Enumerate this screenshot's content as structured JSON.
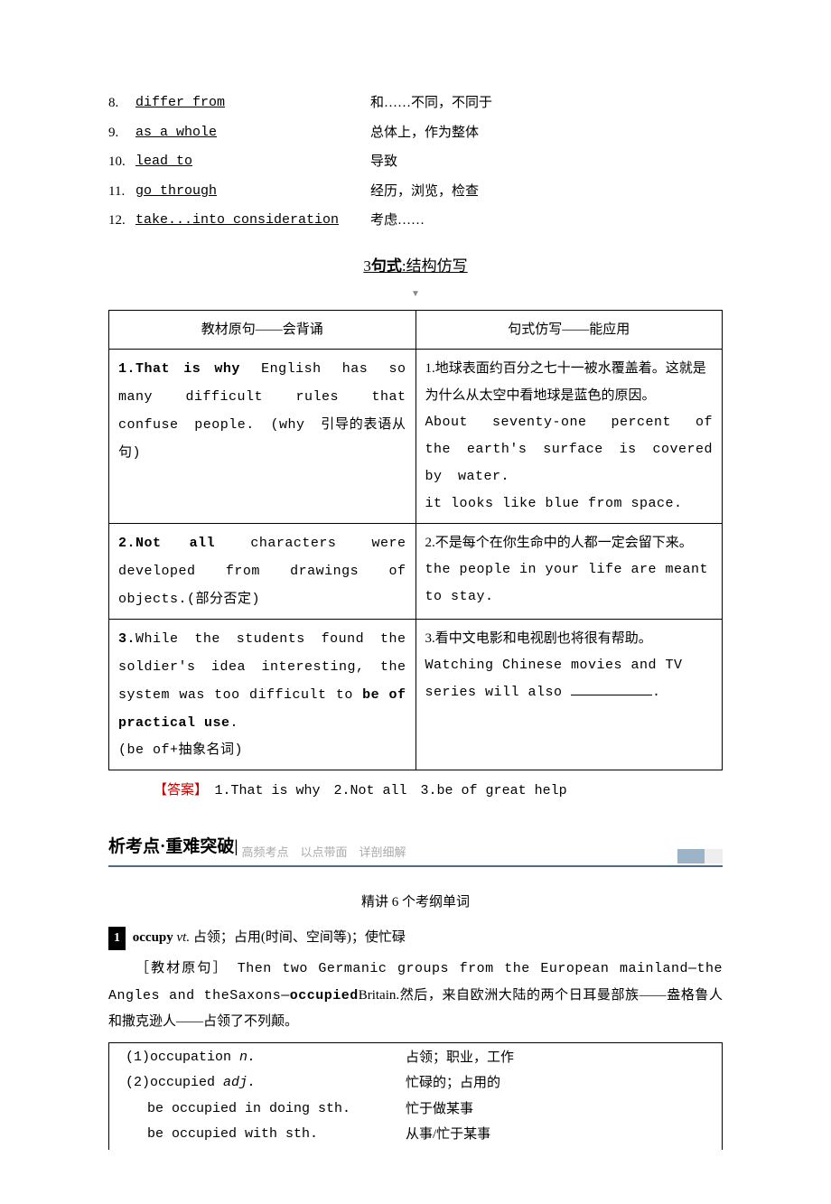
{
  "vocab": [
    {
      "num": "8.",
      "term": "differ from",
      "def": "和……不同，不同于"
    },
    {
      "num": "9.",
      "term": "as a whole",
      "def": "总体上，作为整体"
    },
    {
      "num": "10.",
      "term": "lead to",
      "def": "导致"
    },
    {
      "num": "11.",
      "term": "go through",
      "def": "经历，浏览，检查"
    },
    {
      "num": "12.",
      "term": "take...into consideration",
      "def": "考虑……"
    }
  ],
  "section_title_a": "3",
  "section_title_b": "句式",
  "section_title_c": ":结构仿写",
  "table": {
    "h1": "教材原句——会背诵",
    "h2": "句式仿写——能应用",
    "rows": [
      {
        "left_bold": "1.That is why",
        "left_rest": " English has so many difficult rules that confuse people. (why 引导的表语从句)",
        "right_cn": "1.地球表面约百分之七十一被水覆盖着。这就是为什么从太空中看地球是蓝色的原因。",
        "right_en1": "About seventy-one percent of the earth's surface is covered by water.",
        "right_en2": "it looks like blue from space."
      },
      {
        "left_bold": "2.Not all",
        "left_rest": " characters were developed from drawings of objects.(部分否定)",
        "right_cn": "2.不是每个在你生命中的人都一定会留下来。",
        "right_en1": "the people in your life are meant to stay.",
        "right_en2": ""
      },
      {
        "left_a": "3.",
        "left_b": "While the students found the soldier's idea interesting, the system was too difficult to ",
        "left_bold": "be of practical use",
        "left_c": ".",
        "left_note": "(be of+抽象名词)",
        "right_cn": "3.看中文电影和电视剧也将很有帮助。",
        "right_en1": "Watching Chinese movies and TV series will also ",
        "right_en2": "."
      }
    ]
  },
  "answer_label": "【答案】",
  "answer_text": "　1.That is why　2.Not all　3.be of great help",
  "bar_title": "析考点·重难突破",
  "bar_sep": "|",
  "bar_sub": "高频考点　以点带面　详剖细解",
  "center_sub": "精讲 6 个考纲单词",
  "entry": {
    "num": "1",
    "word": "occupy",
    "pos": "vt.",
    "def": "占领；占用(时间、空间等)；使忙碌",
    "src_label": "［教材原句］",
    "src_text_a": "　Then two Germanic groups from the European mainland—the Angles and theSaxons—",
    "src_bold": "occupied",
    "src_text_b": "Britain.然后，来自欧洲大陆的两个日耳曼部族——盎格鲁人和撒克逊人——占领了不列颠。"
  },
  "def_rows": [
    {
      "l": "(1)occupation n.",
      "r": "占领；职业，工作",
      "italic_word": "n."
    },
    {
      "l": "(2)occupied adj.",
      "r": "忙碌的；占用的",
      "italic_word": "adj."
    },
    {
      "l": "　 be occupied in doing sth.",
      "r": "忙于做某事",
      "italic_word": ""
    },
    {
      "l": "　 be occupied with sth.",
      "r": "从事/忙于某事",
      "italic_word": ""
    }
  ]
}
